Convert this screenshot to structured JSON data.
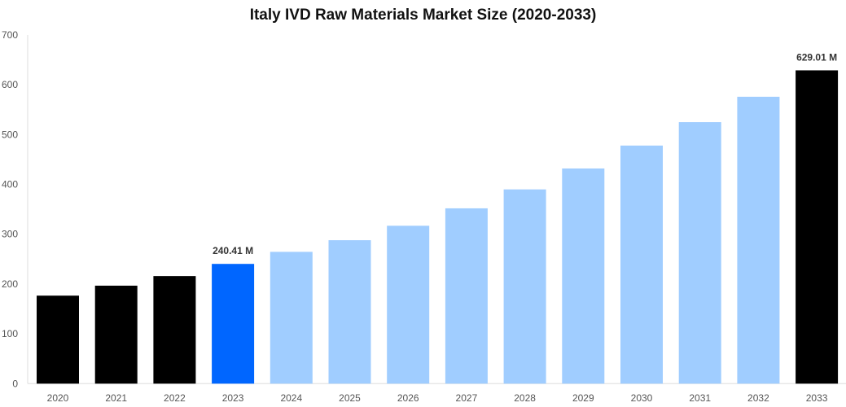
{
  "chart_data": {
    "type": "bar",
    "title": "Italy IVD Raw Materials Market Size (2020-2033)",
    "xlabel": "",
    "ylabel": "",
    "ylim": [
      0,
      700
    ],
    "yticks": [
      0,
      100,
      200,
      300,
      400,
      500,
      600,
      700
    ],
    "grid": false,
    "categories": [
      "2020",
      "2021",
      "2022",
      "2023",
      "2024",
      "2025",
      "2026",
      "2027",
      "2028",
      "2029",
      "2030",
      "2031",
      "2032",
      "2033"
    ],
    "values": [
      176.7,
      196.7,
      216,
      240.41,
      264.6,
      288,
      317,
      352,
      390,
      432,
      478,
      525,
      576,
      629.01
    ],
    "colors": [
      "#000000",
      "#000000",
      "#000000",
      "#0066ff",
      "#a0cdff",
      "#a0cdff",
      "#a0cdff",
      "#a0cdff",
      "#a0cdff",
      "#a0cdff",
      "#a0cdff",
      "#a0cdff",
      "#a0cdff",
      "#000000"
    ],
    "data_labels": {
      "3": "240.41 M",
      "13": "629.01 M"
    }
  }
}
